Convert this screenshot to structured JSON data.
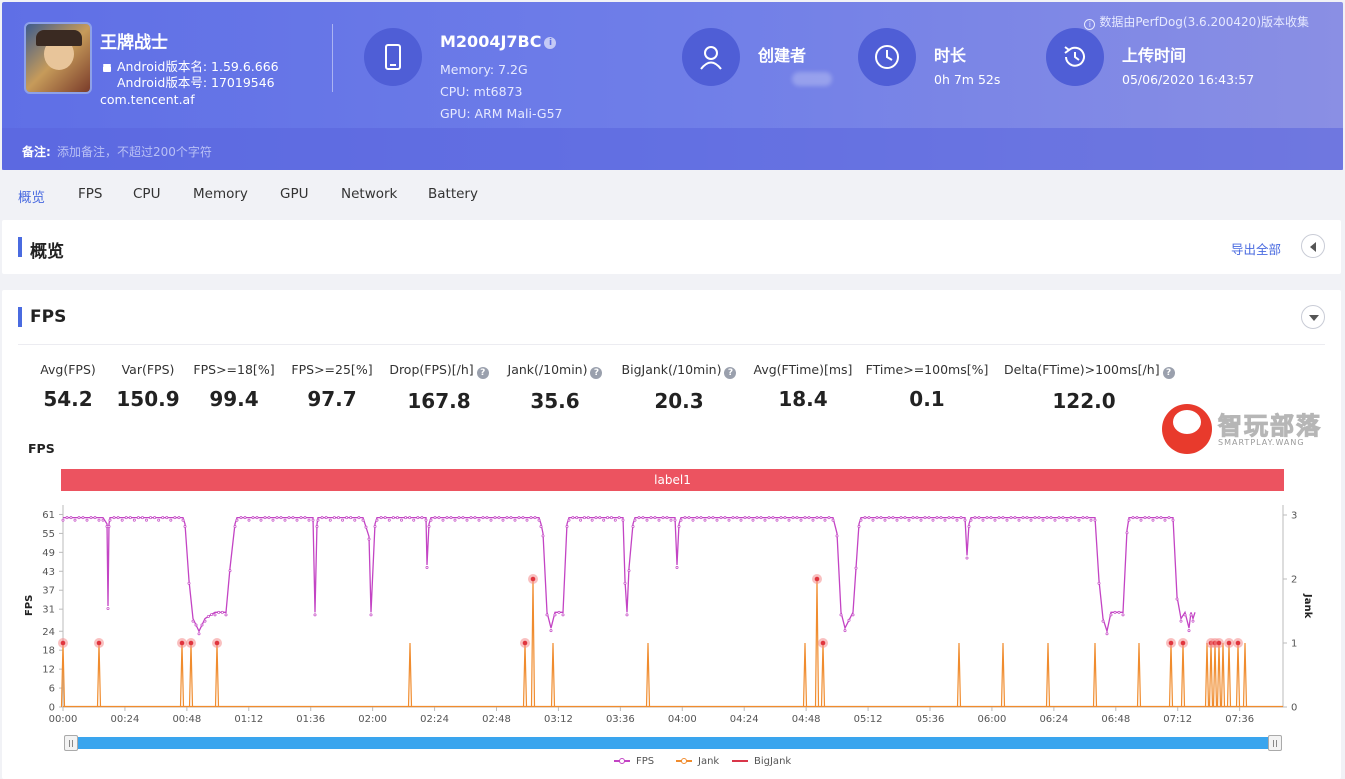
{
  "header": {
    "source_note": "数据由PerfDog(3.6.200420)版本收集",
    "app": {
      "title": "王牌战士",
      "version_name": "Android版本名: 1.59.6.666",
      "version_code": "Android版本号: 17019546",
      "package": "com.tencent.af"
    },
    "device": {
      "model": "M2004J7BC",
      "memory": "Memory: 7.2G",
      "cpu": "CPU: mt6873",
      "gpu": "GPU: ARM Mali-G57"
    },
    "creator": {
      "title": "创建者"
    },
    "duration": {
      "title": "时长",
      "value": "0h 7m 52s"
    },
    "upload": {
      "title": "上传时间",
      "value": "05/06/2020 16:43:57"
    },
    "note": {
      "label": "备注:",
      "placeholder": "添加备注，不超过200个字符"
    }
  },
  "tabs": [
    "概览",
    "FPS",
    "CPU",
    "Memory",
    "GPU",
    "Network",
    "Battery"
  ],
  "overview": {
    "title": "概览",
    "export_label": "导出全部"
  },
  "fps_section": {
    "title": "FPS",
    "stats": [
      {
        "label": "Avg(FPS)",
        "value": "54.2",
        "help": false
      },
      {
        "label": "Var(FPS)",
        "value": "150.9",
        "help": false
      },
      {
        "label": "FPS>=18[%]",
        "value": "99.4",
        "help": false
      },
      {
        "label": "FPS>=25[%]",
        "value": "97.7",
        "help": false
      },
      {
        "label": "Drop(FPS)[/h]",
        "value": "167.8",
        "help": true
      },
      {
        "label": "Jank(/10min)",
        "value": "35.6",
        "help": true
      },
      {
        "label": "BigJank(/10min)",
        "value": "20.3",
        "help": true
      },
      {
        "label": "Avg(FTime)[ms]",
        "value": "18.4",
        "help": false
      },
      {
        "label": "FTime>=100ms[%]",
        "value": "0.1",
        "help": false
      },
      {
        "label": "Delta(FTime)>100ms[/h]",
        "value": "122.0",
        "help": true
      }
    ],
    "watermark": {
      "text": "智玩部落",
      "sub": "SMARTPLAY.WANG"
    }
  },
  "chart_data": {
    "type": "line",
    "title": "FPS",
    "label_band": "label1",
    "ylabel": "FPS",
    "y2label": "Jank",
    "ylim": [
      0,
      64
    ],
    "y2lim": [
      0,
      3
    ],
    "yticks": [
      0,
      6,
      12,
      18,
      24,
      31,
      37,
      43,
      49,
      55,
      61
    ],
    "y2ticks": [
      0,
      1,
      2,
      3
    ],
    "xlim": [
      0,
      472
    ],
    "xticks": [
      "00:00",
      "00:24",
      "00:48",
      "01:12",
      "01:36",
      "02:00",
      "02:24",
      "02:48",
      "03:12",
      "03:36",
      "04:00",
      "04:24",
      "04:48",
      "05:12",
      "05:36",
      "06:00",
      "06:24",
      "06:48",
      "07:12",
      "07:36"
    ],
    "legend": [
      "FPS",
      "Jank",
      "BigJank"
    ],
    "series": [
      {
        "name": "FPS",
        "color": "#c344c4",
        "segments": [
          [
            0,
            60
          ],
          [
            40,
            60
          ],
          [
            44,
            58
          ],
          [
            45,
            32
          ],
          [
            46,
            58
          ],
          [
            47,
            60
          ],
          [
            120,
            60
          ],
          [
            122,
            58
          ],
          [
            126,
            40
          ],
          [
            130,
            28
          ],
          [
            136,
            24
          ],
          [
            142,
            28
          ],
          [
            152,
            30
          ],
          [
            163,
            30
          ],
          [
            167,
            44
          ],
          [
            172,
            58
          ],
          [
            174,
            60
          ],
          [
            250,
            60
          ],
          [
            252,
            30
          ],
          [
            254,
            58
          ],
          [
            255,
            60
          ],
          [
            300,
            60
          ],
          [
            306,
            54
          ],
          [
            308,
            30
          ],
          [
            312,
            58
          ],
          [
            314,
            60
          ],
          [
            363,
            60
          ],
          [
            364,
            45
          ],
          [
            366,
            58
          ],
          [
            368,
            60
          ],
          [
            476,
            60
          ],
          [
            478,
            58
          ],
          [
            480,
            55
          ],
          [
            484,
            30
          ],
          [
            488,
            25
          ],
          [
            492,
            30
          ],
          [
            500,
            30
          ],
          [
            504,
            58
          ],
          [
            506,
            60
          ],
          [
            560,
            60
          ],
          [
            562,
            40
          ],
          [
            564,
            30
          ],
          [
            566,
            44
          ],
          [
            570,
            58
          ],
          [
            572,
            60
          ],
          [
            612,
            60
          ],
          [
            614,
            45
          ],
          [
            616,
            58
          ],
          [
            618,
            60
          ],
          [
            770,
            60
          ],
          [
            774,
            55
          ],
          [
            778,
            30
          ],
          [
            782,
            25
          ],
          [
            790,
            30
          ],
          [
            796,
            58
          ],
          [
            798,
            60
          ],
          [
            902,
            60
          ],
          [
            904,
            48
          ],
          [
            906,
            58
          ],
          [
            908,
            60
          ],
          [
            1032,
            60
          ],
          [
            1036,
            40
          ],
          [
            1040,
            28
          ],
          [
            1044,
            24
          ],
          [
            1048,
            30
          ],
          [
            1060,
            30
          ],
          [
            1064,
            56
          ],
          [
            1066,
            60
          ],
          [
            1110,
            60
          ],
          [
            1114,
            35
          ],
          [
            1118,
            28
          ],
          [
            1122,
            30
          ],
          [
            1126,
            25
          ],
          [
            1128,
            30
          ],
          [
            1130,
            28
          ],
          [
            1132,
            30
          ]
        ]
      },
      {
        "name": "Jank",
        "color": "#f08c2e",
        "spikes": [
          [
            0,
            1
          ],
          [
            36,
            1
          ],
          [
            119,
            1
          ],
          [
            128,
            1
          ],
          [
            154,
            1
          ],
          [
            347,
            1
          ],
          [
            462,
            1
          ],
          [
            470,
            2
          ],
          [
            490,
            1
          ],
          [
            585,
            1
          ],
          [
            742,
            1
          ],
          [
            754,
            2
          ],
          [
            760,
            1
          ],
          [
            896,
            1
          ],
          [
            940,
            1
          ],
          [
            985,
            1
          ],
          [
            1032,
            1
          ],
          [
            1076,
            1
          ],
          [
            1108,
            1
          ],
          [
            1120,
            1
          ],
          [
            1144,
            1
          ],
          [
            1148,
            1
          ],
          [
            1152,
            1
          ],
          [
            1156,
            1
          ],
          [
            1160,
            1
          ],
          [
            1166,
            1
          ],
          [
            1175,
            1
          ],
          [
            1182,
            1
          ]
        ],
        "highlighted": [
          0,
          36,
          119,
          128,
          154,
          462,
          470,
          754,
          760,
          1108,
          1120,
          1148,
          1152,
          1156,
          1166,
          1175
        ]
      },
      {
        "name": "BigJank",
        "color": "#d9364a",
        "spikes": []
      }
    ]
  }
}
